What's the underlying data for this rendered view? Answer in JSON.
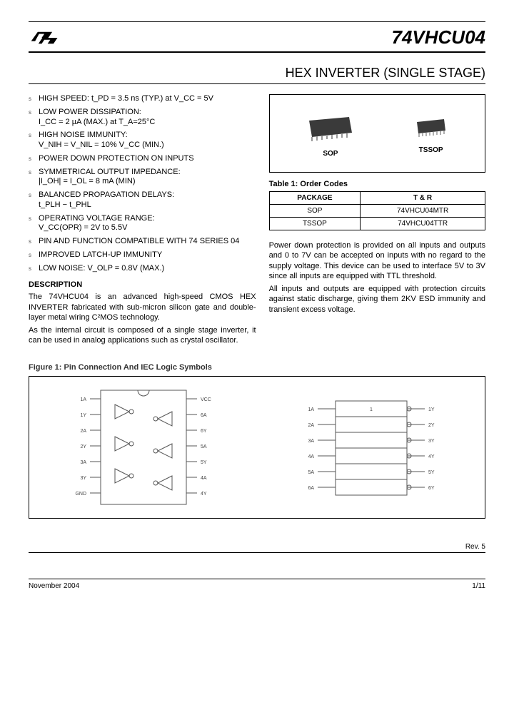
{
  "header": {
    "brand_text": "",
    "part_number": "74VHCU04"
  },
  "title": "HEX INVERTER (SINGLE STAGE)",
  "features": [
    {
      "line1": "HIGH SPEED: t_PD = 3.5 ns (TYP.) at V_CC = 5V"
    },
    {
      "line1": "LOW POWER DISSIPATION:",
      "line2": "I_CC = 2 µA (MAX.) at T_A=25°C"
    },
    {
      "line1": "HIGH NOISE IMMUNITY:",
      "line2": "V_NIH = V_NIL = 10% V_CC (MIN.)"
    },
    {
      "line1": "POWER DOWN PROTECTION ON INPUTS"
    },
    {
      "line1": "SYMMETRICAL OUTPUT IMPEDANCE:",
      "line2": "|I_OH| = I_OL = 8 mA (MIN)"
    },
    {
      "line1": "BALANCED PROPAGATION DELAYS:",
      "line2": "t_PLH − t_PHL"
    },
    {
      "line1": "OPERATING VOLTAGE RANGE:",
      "line2": "V_CC(OPR) = 2V to 5.5V"
    },
    {
      "line1": "PIN AND FUNCTION COMPATIBLE WITH 74 SERIES 04"
    },
    {
      "line1": "IMPROVED LATCH-UP IMMUNITY"
    },
    {
      "line1": "LOW NOISE: V_OLP = 0.8V (MAX.)"
    }
  ],
  "description": {
    "heading": "DESCRIPTION",
    "p1": "The 74VHCU04 is an advanced high-speed CMOS HEX INVERTER fabricated with sub-micron silicon gate and double-layer metal wiring C²MOS technology.",
    "p2": "As the internal circuit is composed of a single stage inverter, it can be used in analog applications such as crystal oscillator."
  },
  "packages": {
    "items": [
      {
        "label": "SOP"
      },
      {
        "label": "TSSOP"
      }
    ]
  },
  "table1": {
    "caption": "Table 1: Order Codes",
    "headers": [
      "PACKAGE",
      "T & R"
    ],
    "rows": [
      [
        "SOP",
        "74VHCU04MTR"
      ],
      [
        "TSSOP",
        "74VHCU04TTR"
      ]
    ]
  },
  "right_text": {
    "p1": "Power down protection is provided on all inputs and outputs and 0 to 7V can be accepted on inputs with no regard to the supply voltage. This device can be used to interface 5V to 3V since all inputs are equipped with TTL threshold.",
    "p2": "All inputs and outputs are equipped with protection circuits against static discharge, giving them 2KV ESD immunity and transient excess voltage."
  },
  "figure1": {
    "caption": "Figure 1: Pin Connection And IEC Logic Symbols",
    "left_pins_l": [
      "1A",
      "1Y",
      "2A",
      "2Y",
      "3A",
      "3Y",
      "GND"
    ],
    "left_pins_r": [
      "VCC",
      "6A",
      "6Y",
      "5A",
      "5Y",
      "4A",
      "4Y"
    ],
    "iec_left": [
      "1A",
      "2A",
      "3A",
      "4A",
      "5A",
      "6A"
    ],
    "iec_right": [
      "1Y",
      "2Y",
      "3Y",
      "4Y",
      "5Y",
      "6Y"
    ]
  },
  "footer": {
    "date": "November 2004",
    "rev": "Rev. 5",
    "page": "1/11"
  },
  "colors": {
    "text": "#000000",
    "border": "#000000",
    "chip_body": "#3a3a3a",
    "chip_leads": "#888888"
  }
}
